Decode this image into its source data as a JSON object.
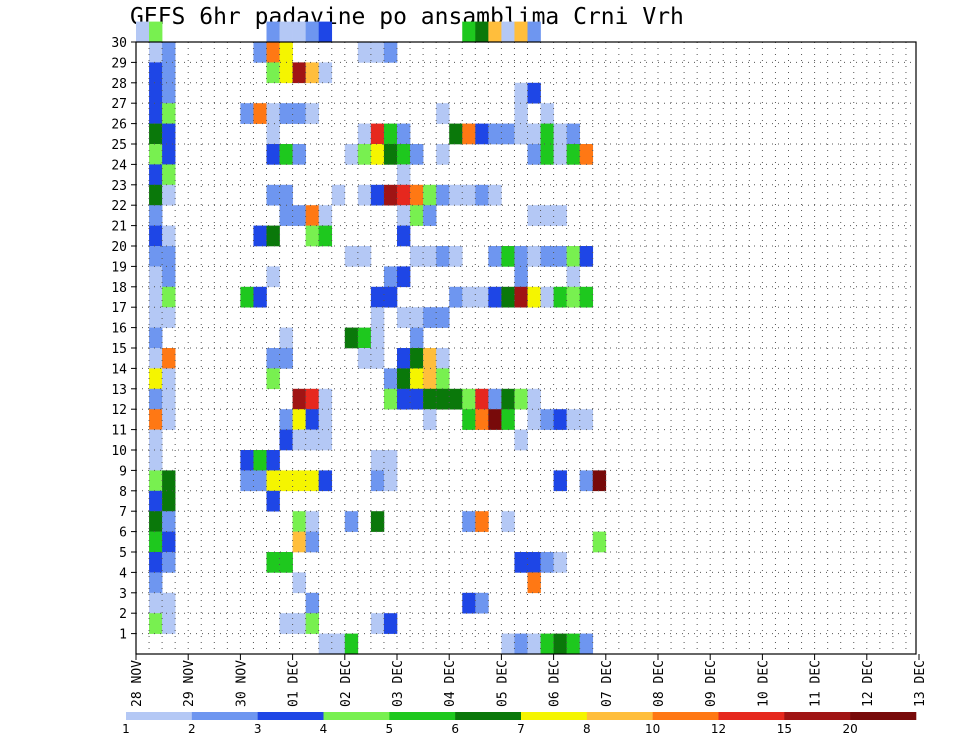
{
  "chart_data": {
    "type": "heatmap",
    "title": "GEFS 6hr padavine po ansamblima Crni Vrh",
    "ylim": [
      0,
      30
    ],
    "yticks": [
      "1",
      "2",
      "3",
      "4",
      "5",
      "6",
      "7",
      "8",
      "9",
      "10",
      "11",
      "12",
      "13",
      "14",
      "15",
      "16",
      "17",
      "18",
      "19",
      "20",
      "21",
      "22",
      "23",
      "24",
      "25",
      "26",
      "27",
      "28",
      "29",
      "30"
    ],
    "xticks": [
      "28 NOV",
      "29 NOV",
      "30 NOV",
      "01 DEC",
      "02 DEC",
      "03 DEC",
      "04 DEC",
      "05 DEC",
      "06 DEC",
      "07 DEC",
      "08 DEC",
      "09 DEC",
      "10 DEC",
      "11 DEC",
      "12 DEC",
      "13 DEC"
    ],
    "grid": true,
    "colorbar": {
      "labels": [
        "1",
        "2",
        "3",
        "4",
        "5",
        "6",
        "7",
        "8",
        "10",
        "12",
        "15",
        "20"
      ],
      "colors": [
        "#b4c8f5",
        "#6e96f0",
        "#1e46e6",
        "#78f050",
        "#1ec81e",
        "#0a780a",
        "#f5f500",
        "#ffbe3c",
        "#ff7814",
        "#e6281e",
        "#a01414",
        "#780a0a"
      ]
    },
    "cells_note": "6-hourly steps from 28 NOV 12Z; each cell = [member, step, class]",
    "cells": [
      [
        30,
        0,
        1
      ],
      [
        30,
        1,
        4
      ],
      [
        30,
        10,
        2
      ],
      [
        30,
        11,
        1
      ],
      [
        30,
        12,
        1
      ],
      [
        30,
        13,
        2
      ],
      [
        30,
        14,
        3
      ],
      [
        30,
        25,
        5
      ],
      [
        30,
        26,
        6
      ],
      [
        30,
        27,
        8
      ],
      [
        30,
        28,
        1
      ],
      [
        30,
        29,
        8
      ],
      [
        30,
        30,
        2
      ],
      [
        29,
        1,
        1
      ],
      [
        29,
        2,
        2
      ],
      [
        29,
        9,
        2
      ],
      [
        29,
        10,
        9
      ],
      [
        29,
        11,
        7
      ],
      [
        29,
        17,
        1
      ],
      [
        29,
        18,
        1
      ],
      [
        29,
        19,
        2
      ],
      [
        28,
        1,
        3
      ],
      [
        28,
        2,
        2
      ],
      [
        28,
        10,
        4
      ],
      [
        28,
        11,
        7
      ],
      [
        28,
        12,
        11
      ],
      [
        28,
        13,
        8
      ],
      [
        28,
        14,
        1
      ],
      [
        27,
        1,
        3
      ],
      [
        27,
        2,
        2
      ],
      [
        27,
        29,
        1
      ],
      [
        27,
        30,
        3
      ],
      [
        26,
        1,
        3
      ],
      [
        26,
        2,
        4
      ],
      [
        26,
        8,
        2
      ],
      [
        26,
        9,
        9
      ],
      [
        26,
        10,
        1
      ],
      [
        26,
        11,
        2
      ],
      [
        26,
        12,
        2
      ],
      [
        26,
        13,
        1
      ],
      [
        26,
        23,
        1
      ],
      [
        26,
        29,
        1
      ],
      [
        26,
        31,
        1
      ],
      [
        25,
        1,
        6
      ],
      [
        25,
        2,
        3
      ],
      [
        25,
        10,
        1
      ],
      [
        25,
        17,
        1
      ],
      [
        25,
        18,
        10
      ],
      [
        25,
        19,
        5
      ],
      [
        25,
        20,
        2
      ],
      [
        25,
        24,
        6
      ],
      [
        25,
        25,
        9
      ],
      [
        25,
        26,
        3
      ],
      [
        25,
        27,
        2
      ],
      [
        25,
        28,
        2
      ],
      [
        25,
        29,
        1
      ],
      [
        25,
        30,
        1
      ],
      [
        25,
        31,
        5
      ],
      [
        25,
        32,
        1
      ],
      [
        25,
        33,
        2
      ],
      [
        24,
        1,
        4
      ],
      [
        24,
        2,
        3
      ],
      [
        24,
        10,
        3
      ],
      [
        24,
        11,
        5
      ],
      [
        24,
        12,
        2
      ],
      [
        24,
        16,
        1
      ],
      [
        24,
        17,
        4
      ],
      [
        24,
        18,
        7
      ],
      [
        24,
        19,
        6
      ],
      [
        24,
        20,
        5
      ],
      [
        24,
        21,
        2
      ],
      [
        24,
        23,
        1
      ],
      [
        24,
        30,
        2
      ],
      [
        24,
        31,
        5
      ],
      [
        24,
        32,
        1
      ],
      [
        24,
        33,
        5
      ],
      [
        24,
        34,
        9
      ],
      [
        23,
        1,
        3
      ],
      [
        23,
        2,
        4
      ],
      [
        23,
        20,
        1
      ],
      [
        22,
        1,
        6
      ],
      [
        22,
        2,
        1
      ],
      [
        22,
        10,
        2
      ],
      [
        22,
        11,
        2
      ],
      [
        22,
        15,
        1
      ],
      [
        22,
        17,
        1
      ],
      [
        22,
        18,
        3
      ],
      [
        22,
        19,
        11
      ],
      [
        22,
        20,
        10
      ],
      [
        22,
        21,
        9
      ],
      [
        22,
        22,
        4
      ],
      [
        22,
        23,
        2
      ],
      [
        22,
        24,
        1
      ],
      [
        22,
        25,
        1
      ],
      [
        22,
        26,
        2
      ],
      [
        22,
        27,
        1
      ],
      [
        21,
        1,
        2
      ],
      [
        21,
        11,
        2
      ],
      [
        21,
        12,
        2
      ],
      [
        21,
        13,
        9
      ],
      [
        21,
        14,
        1
      ],
      [
        21,
        20,
        1
      ],
      [
        21,
        21,
        4
      ],
      [
        21,
        22,
        2
      ],
      [
        21,
        30,
        1
      ],
      [
        21,
        31,
        1
      ],
      [
        21,
        32,
        1
      ],
      [
        20,
        1,
        3
      ],
      [
        20,
        2,
        1
      ],
      [
        20,
        9,
        3
      ],
      [
        20,
        10,
        6
      ],
      [
        20,
        13,
        4
      ],
      [
        20,
        14,
        5
      ],
      [
        20,
        20,
        3
      ],
      [
        19,
        1,
        2
      ],
      [
        19,
        2,
        2
      ],
      [
        19,
        16,
        1
      ],
      [
        19,
        17,
        1
      ],
      [
        19,
        21,
        1
      ],
      [
        19,
        22,
        1
      ],
      [
        19,
        23,
        2
      ],
      [
        19,
        24,
        1
      ],
      [
        19,
        27,
        2
      ],
      [
        19,
        28,
        5
      ],
      [
        19,
        29,
        2
      ],
      [
        19,
        30,
        1
      ],
      [
        19,
        31,
        2
      ],
      [
        19,
        32,
        2
      ],
      [
        19,
        33,
        4
      ],
      [
        19,
        34,
        3
      ],
      [
        18,
        1,
        1
      ],
      [
        18,
        2,
        2
      ],
      [
        18,
        10,
        1
      ],
      [
        18,
        19,
        2
      ],
      [
        18,
        20,
        3
      ],
      [
        18,
        29,
        2
      ],
      [
        18,
        33,
        1
      ],
      [
        17,
        1,
        1
      ],
      [
        17,
        2,
        4
      ],
      [
        17,
        8,
        5
      ],
      [
        17,
        9,
        3
      ],
      [
        17,
        18,
        3
      ],
      [
        17,
        19,
        3
      ],
      [
        17,
        24,
        2
      ],
      [
        17,
        25,
        1
      ],
      [
        17,
        26,
        1
      ],
      [
        17,
        27,
        3
      ],
      [
        17,
        28,
        6
      ],
      [
        17,
        29,
        11
      ],
      [
        17,
        30,
        7
      ],
      [
        17,
        31,
        1
      ],
      [
        17,
        32,
        5
      ],
      [
        17,
        33,
        4
      ],
      [
        17,
        34,
        5
      ],
      [
        16,
        1,
        1
      ],
      [
        16,
        2,
        1
      ],
      [
        16,
        18,
        1
      ],
      [
        16,
        20,
        1
      ],
      [
        16,
        21,
        1
      ],
      [
        16,
        22,
        2
      ],
      [
        16,
        23,
        2
      ],
      [
        15,
        1,
        2
      ],
      [
        15,
        11,
        1
      ],
      [
        15,
        16,
        6
      ],
      [
        15,
        17,
        5
      ],
      [
        15,
        18,
        1
      ],
      [
        15,
        21,
        2
      ],
      [
        14,
        1,
        1
      ],
      [
        14,
        2,
        9
      ],
      [
        14,
        10,
        2
      ],
      [
        14,
        11,
        2
      ],
      [
        14,
        17,
        1
      ],
      [
        14,
        18,
        1
      ],
      [
        14,
        20,
        3
      ],
      [
        14,
        21,
        6
      ],
      [
        14,
        22,
        8
      ],
      [
        14,
        23,
        1
      ],
      [
        13,
        1,
        7
      ],
      [
        13,
        2,
        1
      ],
      [
        13,
        10,
        4
      ],
      [
        13,
        19,
        2
      ],
      [
        13,
        20,
        6
      ],
      [
        13,
        21,
        7
      ],
      [
        13,
        22,
        8
      ],
      [
        13,
        23,
        4
      ],
      [
        12,
        1,
        2
      ],
      [
        12,
        2,
        1
      ],
      [
        12,
        12,
        11
      ],
      [
        12,
        13,
        10
      ],
      [
        12,
        14,
        1
      ],
      [
        12,
        19,
        4
      ],
      [
        12,
        20,
        3
      ],
      [
        12,
        21,
        3
      ],
      [
        12,
        22,
        6
      ],
      [
        12,
        23,
        6
      ],
      [
        12,
        24,
        6
      ],
      [
        12,
        25,
        4
      ],
      [
        12,
        26,
        10
      ],
      [
        12,
        27,
        2
      ],
      [
        12,
        28,
        6
      ],
      [
        12,
        29,
        4
      ],
      [
        12,
        30,
        1
      ],
      [
        11,
        1,
        9
      ],
      [
        11,
        2,
        1
      ],
      [
        11,
        11,
        2
      ],
      [
        11,
        12,
        7
      ],
      [
        11,
        13,
        3
      ],
      [
        11,
        14,
        1
      ],
      [
        11,
        22,
        1
      ],
      [
        11,
        25,
        5
      ],
      [
        11,
        26,
        9
      ],
      [
        11,
        27,
        12
      ],
      [
        11,
        28,
        5
      ],
      [
        11,
        30,
        1
      ],
      [
        11,
        31,
        2
      ],
      [
        11,
        32,
        3
      ],
      [
        11,
        33,
        1
      ],
      [
        11,
        34,
        1
      ],
      [
        10,
        1,
        1
      ],
      [
        10,
        11,
        3
      ],
      [
        10,
        12,
        1
      ],
      [
        10,
        13,
        1
      ],
      [
        10,
        14,
        1
      ],
      [
        10,
        29,
        1
      ],
      [
        9,
        1,
        1
      ],
      [
        9,
        8,
        3
      ],
      [
        9,
        9,
        5
      ],
      [
        9,
        10,
        3
      ],
      [
        9,
        18,
        1
      ],
      [
        9,
        19,
        1
      ],
      [
        8,
        1,
        4
      ],
      [
        8,
        2,
        6
      ],
      [
        8,
        8,
        2
      ],
      [
        8,
        9,
        2
      ],
      [
        8,
        10,
        7
      ],
      [
        8,
        11,
        7
      ],
      [
        8,
        12,
        7
      ],
      [
        8,
        13,
        7
      ],
      [
        8,
        14,
        3
      ],
      [
        8,
        18,
        2
      ],
      [
        8,
        19,
        1
      ],
      [
        8,
        32,
        3
      ],
      [
        8,
        34,
        2
      ],
      [
        8,
        35,
        12
      ],
      [
        7,
        1,
        3
      ],
      [
        7,
        2,
        6
      ],
      [
        7,
        10,
        3
      ],
      [
        6,
        1,
        6
      ],
      [
        6,
        2,
        2
      ],
      [
        6,
        12,
        4
      ],
      [
        6,
        13,
        1
      ],
      [
        6,
        16,
        2
      ],
      [
        6,
        18,
        6
      ],
      [
        6,
        25,
        2
      ],
      [
        6,
        26,
        9
      ],
      [
        6,
        28,
        1
      ],
      [
        5,
        1,
        5
      ],
      [
        5,
        2,
        3
      ],
      [
        5,
        12,
        8
      ],
      [
        5,
        13,
        2
      ],
      [
        5,
        35,
        4
      ],
      [
        4,
        1,
        3
      ],
      [
        4,
        2,
        2
      ],
      [
        4,
        10,
        5
      ],
      [
        4,
        11,
        5
      ],
      [
        4,
        29,
        3
      ],
      [
        4,
        30,
        3
      ],
      [
        4,
        31,
        2
      ],
      [
        4,
        32,
        1
      ],
      [
        3,
        1,
        2
      ],
      [
        3,
        12,
        1
      ],
      [
        3,
        30,
        9
      ],
      [
        2,
        1,
        1
      ],
      [
        2,
        2,
        1
      ],
      [
        2,
        13,
        2
      ],
      [
        2,
        25,
        3
      ],
      [
        2,
        26,
        2
      ],
      [
        1,
        1,
        4
      ],
      [
        1,
        2,
        1
      ],
      [
        1,
        11,
        1
      ],
      [
        1,
        12,
        1
      ],
      [
        1,
        13,
        4
      ],
      [
        1,
        18,
        1
      ],
      [
        1,
        19,
        3
      ],
      [
        0,
        14,
        1
      ],
      [
        0,
        15,
        1
      ],
      [
        0,
        16,
        5
      ],
      [
        0,
        28,
        1
      ],
      [
        0,
        29,
        2
      ],
      [
        0,
        30,
        1
      ],
      [
        0,
        31,
        5
      ],
      [
        0,
        32,
        6
      ],
      [
        0,
        33,
        5
      ],
      [
        0,
        34,
        2
      ]
    ]
  }
}
